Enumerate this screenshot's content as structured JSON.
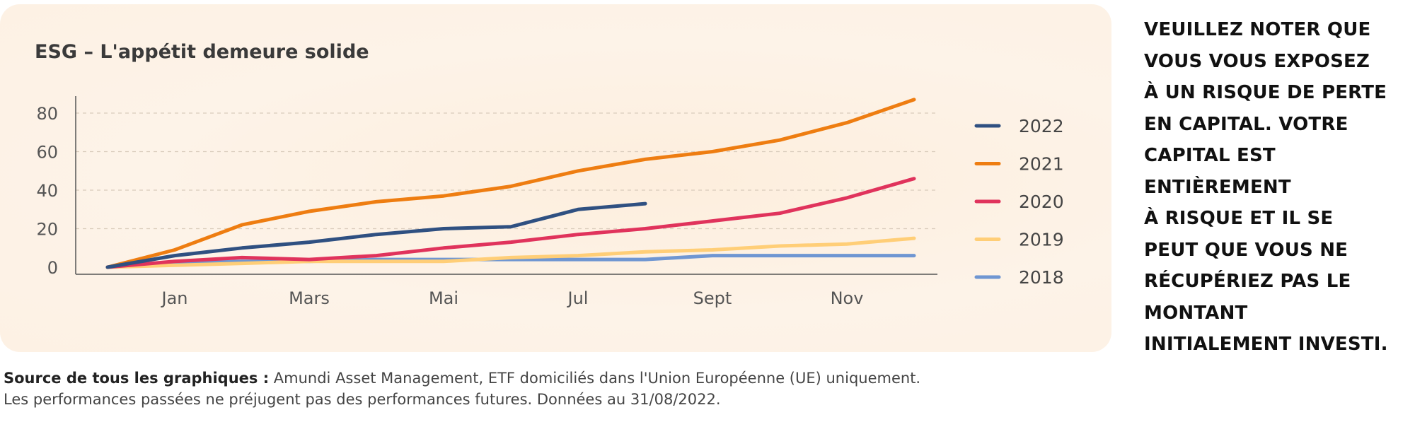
{
  "chart_data": {
    "type": "line",
    "title": "ESG – L'appétit demeure solide",
    "xlabel": "",
    "ylabel": "",
    "x_range": [
      1,
      13
    ],
    "ylim": [
      -5,
      90
    ],
    "y_ticks": [
      0,
      20,
      40,
      60,
      80
    ],
    "x_ticks": [
      {
        "label": "Jan",
        "x": 2
      },
      {
        "label": "Mars",
        "x": 4
      },
      {
        "label": "Mai",
        "x": 6
      },
      {
        "label": "Jul",
        "x": 8
      },
      {
        "label": "Sept",
        "x": 10
      },
      {
        "label": "Nov",
        "x": 12
      }
    ],
    "grid": true,
    "legend_position": "right",
    "series": [
      {
        "name": "2022",
        "color": "#2f5081",
        "x": [
          1,
          2,
          3,
          4,
          5,
          6,
          7,
          8,
          9
        ],
        "y": [
          0,
          6,
          10,
          13,
          17,
          20,
          21,
          30,
          33
        ]
      },
      {
        "name": "2021",
        "color": "#ee7d11",
        "x": [
          1,
          2,
          3,
          4,
          5,
          6,
          7,
          8,
          9,
          10,
          11,
          12,
          13
        ],
        "y": [
          0,
          9,
          22,
          29,
          34,
          37,
          42,
          50,
          56,
          60,
          66,
          75,
          87
        ]
      },
      {
        "name": "2020",
        "color": "#e0335c",
        "x": [
          1,
          2,
          3,
          4,
          5,
          6,
          7,
          8,
          9,
          10,
          11,
          12,
          13
        ],
        "y": [
          0,
          3,
          5,
          4,
          6,
          10,
          13,
          17,
          20,
          24,
          28,
          36,
          46
        ]
      },
      {
        "name": "2019",
        "color": "#ffce77",
        "x": [
          1,
          2,
          3,
          4,
          5,
          6,
          7,
          8,
          9,
          10,
          11,
          12,
          13
        ],
        "y": [
          0,
          1,
          2,
          3,
          3,
          3,
          5,
          6,
          8,
          9,
          11,
          12,
          15
        ]
      },
      {
        "name": "2018",
        "color": "#6f96d2",
        "x": [
          1,
          2,
          3,
          4,
          5,
          6,
          7,
          8,
          9,
          10,
          11,
          12,
          13
        ],
        "y": [
          0,
          2,
          3,
          3,
          4,
          4,
          4,
          4,
          4,
          6,
          6,
          6,
          6
        ]
      }
    ]
  },
  "warning_lines": [
    "VEUILLEZ NOTER QUE",
    "VOUS VOUS EXPOSEZ",
    "À UN RISQUE DE PERTE",
    "EN CAPITAL. VOTRE",
    "CAPITAL EST",
    "ENTIÈREMENT",
    "À RISQUE ET IL SE",
    "PEUT QUE VOUS NE",
    "RÉCUPÉRIEZ PAS LE",
    "MONTANT",
    "INITIALEMENT INVESTI."
  ],
  "footer": {
    "source_label": "Source de tous les graphiques :",
    "source_text": " Amundi Asset Management, ETF domiciliés dans l'Union Européenne (UE) uniquement.",
    "disclaimer": "Les performances passées ne préjugent pas des performances futures. Données au 31/08/2022."
  }
}
